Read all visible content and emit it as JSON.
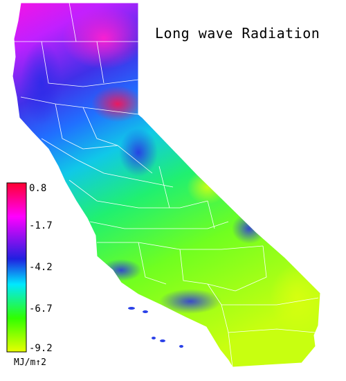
{
  "map": {
    "title": "Long wave Radiation",
    "region": "California",
    "legend": {
      "ticks": [
        "0.8",
        "-1.7",
        "-4.2",
        "-6.7",
        "-9.2"
      ],
      "unit": "MJ/m↑2",
      "colors": [
        "#ff0030",
        "#ff00ff",
        "#2020e0",
        "#00e8ff",
        "#30ff00",
        "#e8ff00"
      ]
    }
  }
}
